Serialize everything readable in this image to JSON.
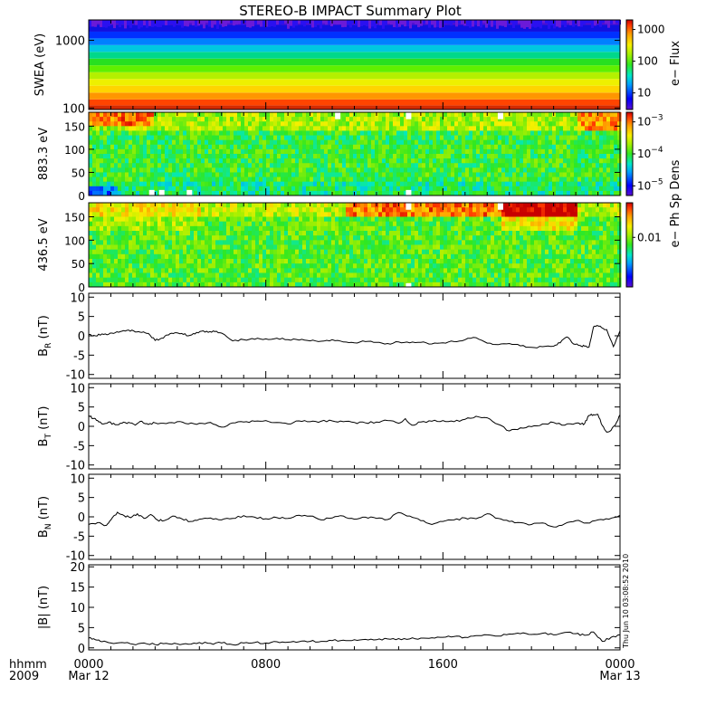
{
  "title": "STEREO-B IMPACT Summary Plot",
  "stamp": "Thu Jun 10 03:08:52 2010",
  "time_axis": {
    "row_label_1": "hhmm",
    "row_label_2": "2009",
    "ticks": [
      {
        "label": "0000",
        "sub": "Mar 12"
      },
      {
        "label": "0800",
        "sub": ""
      },
      {
        "label": "1600",
        "sub": ""
      },
      {
        "label": "0000",
        "sub": "Mar 13"
      }
    ]
  },
  "chart_data": [
    {
      "type": "heatmap",
      "name": "swea",
      "ylabel": "SWEA (eV)",
      "yscale": "log",
      "ylim": [
        95,
        2000
      ],
      "yticks": [
        {
          "v": 100,
          "label": "100"
        },
        {
          "v": 1000,
          "label": "1000"
        }
      ],
      "colorbar": {
        "label": "e− Flux",
        "scale": "log",
        "range": [
          3,
          2000
        ],
        "ticks": [
          {
            "v": 10,
            "label": "10"
          },
          {
            "v": 100,
            "label": "100"
          },
          {
            "v": 1000,
            "label": "1000"
          }
        ]
      },
      "profile": [
        {
          "energy": 100,
          "color": "#d42a00"
        },
        {
          "energy": 120,
          "color": "#ff4400"
        },
        {
          "energy": 150,
          "color": "#ff9600"
        },
        {
          "energy": 190,
          "color": "#ffd400"
        },
        {
          "energy": 240,
          "color": "#eef000"
        },
        {
          "energy": 300,
          "color": "#b4f000"
        },
        {
          "energy": 380,
          "color": "#60f000"
        },
        {
          "energy": 480,
          "color": "#28e020"
        },
        {
          "energy": 600,
          "color": "#00d88a"
        },
        {
          "energy": 760,
          "color": "#00c8e0"
        },
        {
          "energy": 950,
          "color": "#0080ff"
        },
        {
          "energy": 1200,
          "color": "#0030ff"
        },
        {
          "energy": 1500,
          "color": "#1010e0"
        },
        {
          "energy": 1900,
          "color": "#5010d0"
        }
      ]
    },
    {
      "type": "heatmap",
      "name": "pad883",
      "ylabel": "883.3 eV",
      "ylim": [
        0,
        180
      ],
      "yticks": [
        {
          "v": 0,
          "label": "0"
        },
        {
          "v": 50,
          "label": "50"
        },
        {
          "v": 100,
          "label": "100"
        },
        {
          "v": 150,
          "label": "150"
        }
      ],
      "colorbar": {
        "label": "e− Ph Sp Dens",
        "scale": "log",
        "range": [
          5e-06,
          0.002
        ],
        "ticks": [
          {
            "v": 1e-05,
            "base": "10",
            "exp": "−5"
          },
          {
            "v": 0.0001,
            "base": "10",
            "exp": "−4"
          },
          {
            "v": 0.001,
            "base": "10",
            "exp": "−3"
          }
        ]
      },
      "gaps_hours": [
        {
          "t": 2.85,
          "from": 0,
          "to": 12
        },
        {
          "t": 3.3,
          "from": 0,
          "to": 12
        },
        {
          "t": 4.55,
          "from": 0,
          "to": 12
        },
        {
          "t": 11.25,
          "from": 165,
          "to": 180
        },
        {
          "t": 14.45,
          "from": 165,
          "to": 180
        },
        {
          "t": 14.45,
          "from": 0,
          "to": 12
        },
        {
          "t": 18.6,
          "from": 165,
          "to": 180
        }
      ]
    },
    {
      "type": "heatmap",
      "name": "pad436",
      "ylabel": "436.5 eV",
      "ylim": [
        0,
        180
      ],
      "yticks": [
        {
          "v": 0,
          "label": "0"
        },
        {
          "v": 50,
          "label": "50"
        },
        {
          "v": 100,
          "label": "100"
        },
        {
          "v": 150,
          "label": "150"
        }
      ],
      "colorbar": {
        "label": "e− Ph Sp Dens",
        "scale": "log",
        "range": [
          0.001,
          0.05
        ],
        "ticks": [
          {
            "v": 0.01,
            "label": "0.01"
          }
        ]
      },
      "gaps_hours": [
        {
          "t": 14.45,
          "from": 165,
          "to": 180
        },
        {
          "t": 18.6,
          "from": 165,
          "to": 180
        },
        {
          "t": 14.45,
          "from": 0,
          "to": 8
        }
      ]
    },
    {
      "type": "line",
      "name": "br",
      "ylabel_main": "B",
      "ylabel_sub": "R",
      "ylabel_unit": " (nT)",
      "ylim": [
        -11,
        11
      ],
      "yticks": [
        -10,
        -5,
        0,
        5,
        10
      ],
      "x": [
        0,
        0.3,
        0.6,
        0.9,
        1.2,
        1.5,
        1.8,
        2.1,
        2.4,
        2.7,
        3.0,
        3.3,
        3.6,
        3.9,
        4.2,
        4.5,
        4.8,
        5.1,
        5.4,
        5.7,
        6.0,
        6.5,
        7.0,
        7.5,
        8.0,
        8.5,
        9.0,
        9.5,
        10.0,
        10.5,
        11.0,
        11.5,
        12.0,
        12.5,
        13.0,
        13.5,
        14.0,
        14.5,
        15.0,
        15.5,
        16.0,
        16.5,
        17.0,
        17.5,
        18.0,
        18.5,
        19.0,
        19.5,
        20.0,
        20.5,
        21.0,
        21.3,
        21.6,
        21.9,
        22.2,
        22.4,
        22.6,
        22.8,
        23.0,
        23.2,
        23.4,
        23.7,
        24.0
      ],
      "y": [
        0.3,
        0.0,
        0.5,
        0.4,
        0.8,
        1.2,
        1.5,
        1.0,
        0.9,
        0.6,
        -1.2,
        -0.6,
        0.2,
        0.8,
        0.6,
        0.0,
        0.5,
        1.2,
        0.9,
        1.1,
        0.7,
        -1.3,
        -1.0,
        -0.9,
        -0.8,
        -0.6,
        -1.0,
        -1.1,
        -1.3,
        -1.4,
        -1.0,
        -1.6,
        -1.8,
        -1.5,
        -1.7,
        -2.0,
        -1.6,
        -1.8,
        -1.7,
        -2.1,
        -1.8,
        -1.5,
        -1.0,
        -0.5,
        -1.9,
        -2.3,
        -2.0,
        -2.6,
        -3.0,
        -2.8,
        -2.7,
        -1.8,
        -0.3,
        -2.1,
        -2.5,
        -2.7,
        -2.9,
        2.3,
        2.6,
        2.0,
        1.6,
        -2.8,
        1.3
      ]
    },
    {
      "type": "line",
      "name": "bt",
      "ylabel_main": "B",
      "ylabel_sub": "T",
      "ylabel_unit": " (nT)",
      "ylim": [
        -11,
        11
      ],
      "yticks": [
        -10,
        -5,
        0,
        5,
        10
      ],
      "x": [
        0,
        0.2,
        0.4,
        0.6,
        0.9,
        1.2,
        1.5,
        1.8,
        2.1,
        2.4,
        2.7,
        3.0,
        3.5,
        4.0,
        4.5,
        5.0,
        5.5,
        6.0,
        6.5,
        7.0,
        7.5,
        8.0,
        8.5,
        9.0,
        9.5,
        10.0,
        10.5,
        11.0,
        11.5,
        12.0,
        12.5,
        13.0,
        13.5,
        14.0,
        14.3,
        14.6,
        15.0,
        15.5,
        16.0,
        16.5,
        17.0,
        17.5,
        18.0,
        18.5,
        19.0,
        19.5,
        20.0,
        20.5,
        21.0,
        21.5,
        22.0,
        22.2,
        22.4,
        22.6,
        22.8,
        23.0,
        23.2,
        23.4,
        23.6,
        23.8,
        24.0
      ],
      "y": [
        2.8,
        2.0,
        1.5,
        0.6,
        1.1,
        0.4,
        0.8,
        1.0,
        0.3,
        1.3,
        0.5,
        0.9,
        0.7,
        1.2,
        0.6,
        0.8,
        1.0,
        -0.2,
        0.9,
        1.1,
        1.3,
        1.5,
        1.0,
        0.6,
        1.4,
        1.2,
        1.3,
        1.4,
        1.2,
        1.0,
        0.9,
        1.1,
        1.5,
        0.8,
        2.0,
        0.3,
        1.1,
        1.3,
        1.5,
        1.2,
        1.8,
        2.6,
        2.2,
        0.5,
        -1.2,
        -0.4,
        -0.1,
        0.6,
        1.0,
        0.3,
        0.8,
        0.5,
        0.7,
        2.8,
        3.0,
        3.1,
        0.2,
        -1.5,
        -1.0,
        0.5,
        3.0
      ]
    },
    {
      "type": "line",
      "name": "bn",
      "ylabel_main": "B",
      "ylabel_sub": "N",
      "ylabel_unit": " (nT)",
      "ylim": [
        -11,
        11
      ],
      "yticks": [
        -10,
        -5,
        0,
        5,
        10
      ],
      "x": [
        0,
        0.4,
        0.8,
        1.0,
        1.3,
        1.6,
        1.9,
        2.2,
        2.5,
        2.8,
        3.1,
        3.4,
        3.8,
        4.2,
        4.6,
        5.0,
        5.5,
        6.0,
        6.5,
        7.0,
        7.5,
        8.0,
        8.5,
        9.0,
        9.5,
        10.0,
        10.5,
        11.0,
        11.5,
        12.0,
        12.5,
        13.0,
        13.5,
        14.0,
        14.5,
        15.0,
        15.5,
        16.0,
        16.5,
        17.0,
        17.5,
        18.0,
        18.5,
        19.0,
        19.5,
        20.0,
        20.5,
        21.0,
        21.5,
        22.0,
        22.5,
        23.0,
        23.5,
        24.0
      ],
      "y": [
        -2.0,
        -1.5,
        -2.2,
        -0.8,
        1.2,
        0.3,
        -0.2,
        0.8,
        -0.4,
        0.6,
        -0.8,
        -1.0,
        0.2,
        -0.5,
        -1.2,
        -0.6,
        -0.3,
        -0.8,
        -0.4,
        0.3,
        -0.1,
        -0.5,
        -0.2,
        -0.4,
        0.4,
        0.2,
        -0.8,
        -0.3,
        0.2,
        -0.6,
        -0.1,
        -0.4,
        -0.7,
        1.1,
        0.2,
        -1.0,
        -2.0,
        -1.2,
        -0.8,
        -0.3,
        -0.5,
        0.8,
        -0.4,
        -1.2,
        -1.5,
        -2.0,
        -1.6,
        -2.6,
        -1.8,
        -1.0,
        -1.6,
        -0.8,
        -0.6,
        0.4
      ]
    },
    {
      "type": "line",
      "name": "bmag",
      "ylabel_main": "|B|",
      "ylabel_sub": "",
      "ylabel_unit": " (nT)",
      "ylim": [
        -0.5,
        20.5
      ],
      "yticks": [
        0,
        5,
        10,
        15,
        20
      ],
      "x": [
        0,
        0.3,
        0.6,
        1.0,
        1.5,
        2.0,
        2.5,
        3.0,
        3.5,
        4.0,
        4.5,
        5.0,
        5.5,
        6.0,
        6.5,
        7.0,
        7.5,
        8.0,
        8.5,
        9.0,
        9.5,
        10.0,
        10.5,
        11.0,
        11.5,
        12.0,
        12.5,
        13.0,
        13.5,
        14.0,
        14.5,
        15.0,
        15.5,
        16.0,
        16.5,
        17.0,
        17.5,
        18.0,
        18.5,
        19.0,
        19.5,
        20.0,
        20.5,
        21.0,
        21.5,
        22.0,
        22.4,
        22.8,
        23.2,
        23.6,
        24.0
      ],
      "y": [
        2.4,
        2.0,
        1.5,
        1.2,
        1.3,
        0.9,
        1.2,
        0.8,
        1.1,
        1.0,
        0.9,
        1.3,
        1.1,
        1.2,
        0.8,
        1.2,
        1.3,
        1.2,
        1.5,
        1.4,
        1.5,
        1.6,
        1.6,
        1.8,
        1.9,
        2.0,
        2.1,
        2.0,
        2.2,
        2.3,
        2.2,
        2.4,
        2.5,
        2.6,
        2.8,
        2.6,
        3.0,
        3.2,
        2.9,
        3.4,
        3.5,
        3.3,
        3.6,
        3.2,
        3.8,
        3.5,
        3.1,
        3.9,
        1.6,
        2.6,
        3.2
      ]
    }
  ]
}
